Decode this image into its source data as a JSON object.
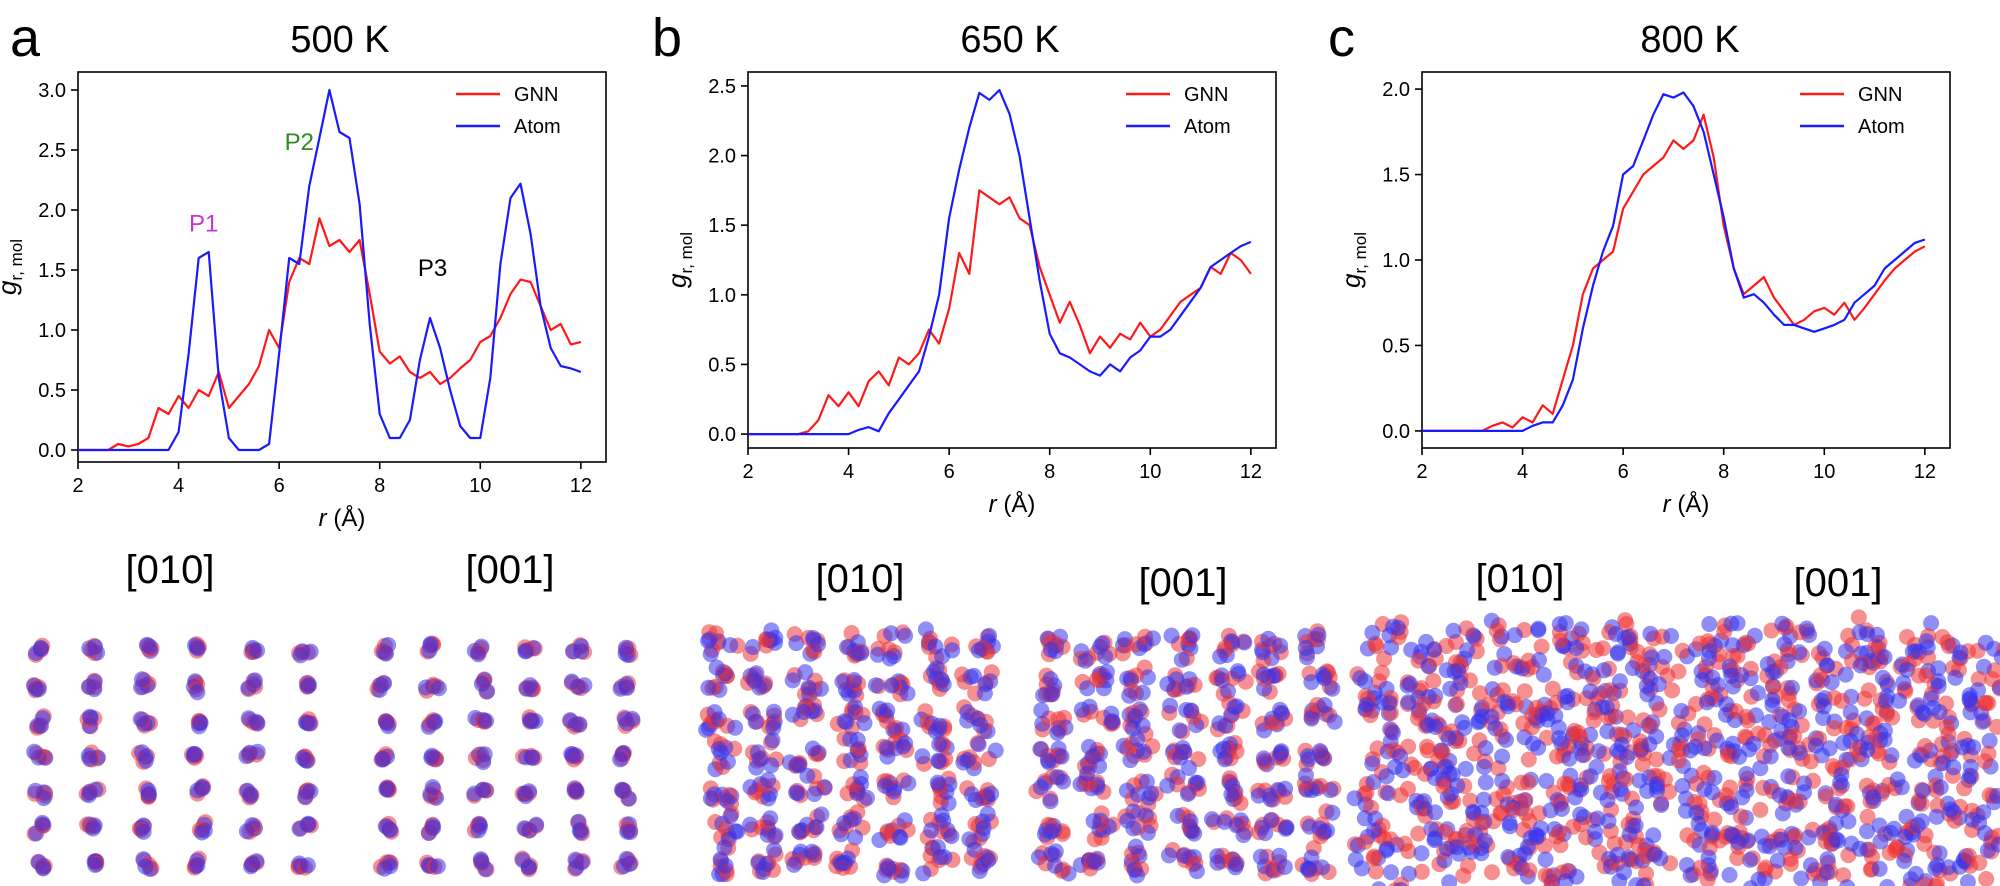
{
  "figure": {
    "colors": {
      "gnn": "#ff1a1a",
      "atom": "#1a1aff",
      "axis": "#000000"
    },
    "panels": [
      {
        "letter": "a",
        "title": "500 K",
        "view_labels": [
          "[010]",
          "[001]"
        ]
      },
      {
        "letter": "b",
        "title": "650 K",
        "view_labels": [
          "[010]",
          "[001]"
        ]
      },
      {
        "letter": "c",
        "title": "800 K",
        "view_labels": [
          "[010]",
          "[001]"
        ]
      }
    ]
  },
  "chart_data": [
    {
      "type": "line",
      "title": "500 K",
      "xlabel": "r (Å)",
      "ylabel": "g r, mol",
      "xlim": [
        2,
        12.5
      ],
      "ylim": [
        -0.1,
        3.15
      ],
      "xticks": [
        2,
        4,
        6,
        8,
        10,
        12
      ],
      "yticks": [
        0.0,
        0.5,
        1.0,
        1.5,
        2.0,
        2.5,
        3.0
      ],
      "legend": "top-right",
      "grid": false,
      "annotations": [
        {
          "text": "P1",
          "x": 4.5,
          "y": 1.82,
          "color": "#cc33cc"
        },
        {
          "text": "P2",
          "x": 6.4,
          "y": 2.5,
          "color": "#2e8b22"
        },
        {
          "text": "P3",
          "x": 9.05,
          "y": 1.45,
          "color": "#000000"
        }
      ],
      "series": [
        {
          "name": "GNN",
          "color": "#ff1a1a",
          "x": [
            2.0,
            2.6,
            2.8,
            3.0,
            3.2,
            3.4,
            3.6,
            3.8,
            4.0,
            4.2,
            4.4,
            4.6,
            4.8,
            5.0,
            5.2,
            5.4,
            5.6,
            5.8,
            6.0,
            6.2,
            6.4,
            6.6,
            6.8,
            7.0,
            7.2,
            7.4,
            7.6,
            7.8,
            8.0,
            8.2,
            8.4,
            8.6,
            8.8,
            9.0,
            9.2,
            9.4,
            9.6,
            9.8,
            10.0,
            10.2,
            10.4,
            10.6,
            10.8,
            11.0,
            11.2,
            11.4,
            11.6,
            11.8,
            12.0
          ],
          "y": [
            0.0,
            0.0,
            0.05,
            0.03,
            0.05,
            0.1,
            0.35,
            0.3,
            0.45,
            0.35,
            0.5,
            0.45,
            0.65,
            0.35,
            0.45,
            0.55,
            0.7,
            1.0,
            0.85,
            1.4,
            1.6,
            1.55,
            1.93,
            1.7,
            1.75,
            1.65,
            1.75,
            1.3,
            0.82,
            0.72,
            0.78,
            0.65,
            0.6,
            0.65,
            0.55,
            0.6,
            0.68,
            0.75,
            0.9,
            0.95,
            1.1,
            1.3,
            1.42,
            1.4,
            1.2,
            1.0,
            1.05,
            0.88,
            0.9
          ]
        },
        {
          "name": "Atom",
          "color": "#1a1aff",
          "x": [
            2.0,
            3.8,
            4.0,
            4.2,
            4.4,
            4.6,
            4.8,
            5.0,
            5.2,
            5.4,
            5.6,
            5.8,
            6.0,
            6.2,
            6.4,
            6.6,
            6.8,
            7.0,
            7.2,
            7.4,
            7.6,
            7.8,
            8.0,
            8.2,
            8.4,
            8.6,
            8.8,
            9.0,
            9.2,
            9.4,
            9.6,
            9.8,
            10.0,
            10.2,
            10.4,
            10.6,
            10.8,
            11.0,
            11.2,
            11.4,
            11.6,
            11.8,
            12.0
          ],
          "y": [
            0.0,
            0.0,
            0.15,
            0.8,
            1.6,
            1.65,
            0.6,
            0.1,
            0.0,
            0.0,
            0.0,
            0.05,
            0.8,
            1.6,
            1.55,
            2.2,
            2.6,
            3.0,
            2.65,
            2.6,
            2.05,
            1.05,
            0.3,
            0.1,
            0.1,
            0.25,
            0.75,
            1.1,
            0.85,
            0.5,
            0.2,
            0.1,
            0.1,
            0.6,
            1.55,
            2.1,
            2.22,
            1.8,
            1.2,
            0.85,
            0.7,
            0.68,
            0.65
          ]
        }
      ]
    },
    {
      "type": "line",
      "title": "650 K",
      "xlabel": "r (Å)",
      "ylabel": "g r, mol",
      "xlim": [
        2,
        12.5
      ],
      "ylim": [
        -0.1,
        2.6
      ],
      "xticks": [
        2,
        4,
        6,
        8,
        10,
        12
      ],
      "yticks": [
        0.0,
        0.5,
        1.0,
        1.5,
        2.0,
        2.5
      ],
      "legend": "top-right",
      "grid": false,
      "series": [
        {
          "name": "GNN",
          "color": "#ff1a1a",
          "x": [
            2.0,
            3.0,
            3.2,
            3.4,
            3.6,
            3.8,
            4.0,
            4.2,
            4.4,
            4.6,
            4.8,
            5.0,
            5.2,
            5.4,
            5.6,
            5.8,
            6.0,
            6.2,
            6.4,
            6.6,
            6.8,
            7.0,
            7.2,
            7.4,
            7.6,
            7.8,
            8.0,
            8.2,
            8.4,
            8.6,
            8.8,
            9.0,
            9.2,
            9.4,
            9.6,
            9.8,
            10.0,
            10.2,
            10.4,
            10.6,
            10.8,
            11.0,
            11.2,
            11.4,
            11.6,
            11.8,
            12.0
          ],
          "y": [
            0.0,
            0.0,
            0.02,
            0.1,
            0.28,
            0.2,
            0.3,
            0.2,
            0.38,
            0.45,
            0.35,
            0.55,
            0.5,
            0.58,
            0.75,
            0.65,
            0.9,
            1.3,
            1.15,
            1.75,
            1.7,
            1.65,
            1.7,
            1.55,
            1.5,
            1.2,
            1.0,
            0.8,
            0.95,
            0.78,
            0.58,
            0.7,
            0.62,
            0.72,
            0.68,
            0.8,
            0.7,
            0.75,
            0.85,
            0.95,
            1.0,
            1.05,
            1.2,
            1.15,
            1.3,
            1.25,
            1.15
          ]
        },
        {
          "name": "Atom",
          "color": "#1a1aff",
          "x": [
            2.0,
            4.0,
            4.2,
            4.4,
            4.6,
            4.8,
            5.0,
            5.2,
            5.4,
            5.6,
            5.8,
            6.0,
            6.2,
            6.4,
            6.6,
            6.8,
            7.0,
            7.2,
            7.4,
            7.6,
            7.8,
            8.0,
            8.2,
            8.4,
            8.6,
            8.8,
            9.0,
            9.2,
            9.4,
            9.6,
            9.8,
            10.0,
            10.2,
            10.4,
            10.6,
            10.8,
            11.0,
            11.2,
            11.4,
            11.6,
            11.8,
            12.0
          ],
          "y": [
            0.0,
            0.0,
            0.03,
            0.05,
            0.02,
            0.15,
            0.25,
            0.35,
            0.45,
            0.7,
            1.0,
            1.55,
            1.9,
            2.2,
            2.45,
            2.4,
            2.47,
            2.3,
            2.0,
            1.55,
            1.1,
            0.72,
            0.58,
            0.55,
            0.5,
            0.45,
            0.42,
            0.5,
            0.45,
            0.55,
            0.6,
            0.7,
            0.7,
            0.75,
            0.85,
            0.95,
            1.05,
            1.2,
            1.25,
            1.3,
            1.35,
            1.38
          ]
        }
      ]
    },
    {
      "type": "line",
      "title": "800 K",
      "xlabel": "r (Å)",
      "ylabel": "g r, mol",
      "xlim": [
        2,
        12.5
      ],
      "ylim": [
        -0.1,
        2.1
      ],
      "xticks": [
        2,
        4,
        6,
        8,
        10,
        12
      ],
      "yticks": [
        0.0,
        0.5,
        1.0,
        1.5,
        2.0
      ],
      "legend": "top-right",
      "grid": false,
      "series": [
        {
          "name": "GNN",
          "color": "#ff1a1a",
          "x": [
            2.0,
            3.2,
            3.4,
            3.6,
            3.8,
            4.0,
            4.2,
            4.4,
            4.6,
            4.8,
            5.0,
            5.2,
            5.4,
            5.6,
            5.8,
            6.0,
            6.2,
            6.4,
            6.6,
            6.8,
            7.0,
            7.2,
            7.4,
            7.6,
            7.8,
            8.0,
            8.2,
            8.4,
            8.6,
            8.8,
            9.0,
            9.2,
            9.4,
            9.6,
            9.8,
            10.0,
            10.2,
            10.4,
            10.6,
            10.8,
            11.0,
            11.2,
            11.4,
            11.6,
            11.8,
            12.0
          ],
          "y": [
            0.0,
            0.0,
            0.03,
            0.05,
            0.02,
            0.08,
            0.05,
            0.15,
            0.1,
            0.3,
            0.5,
            0.8,
            0.95,
            1.0,
            1.05,
            1.3,
            1.4,
            1.5,
            1.55,
            1.6,
            1.7,
            1.65,
            1.7,
            1.85,
            1.6,
            1.2,
            0.95,
            0.8,
            0.85,
            0.9,
            0.78,
            0.7,
            0.62,
            0.65,
            0.7,
            0.72,
            0.68,
            0.75,
            0.65,
            0.72,
            0.8,
            0.88,
            0.95,
            1.0,
            1.05,
            1.08
          ]
        },
        {
          "name": "Atom",
          "color": "#1a1aff",
          "x": [
            2.0,
            4.0,
            4.2,
            4.4,
            4.6,
            4.8,
            5.0,
            5.2,
            5.4,
            5.6,
            5.8,
            6.0,
            6.2,
            6.4,
            6.6,
            6.8,
            7.0,
            7.2,
            7.4,
            7.6,
            7.8,
            8.0,
            8.2,
            8.4,
            8.6,
            8.8,
            9.0,
            9.2,
            9.4,
            9.6,
            9.8,
            10.0,
            10.2,
            10.4,
            10.6,
            10.8,
            11.0,
            11.2,
            11.4,
            11.6,
            11.8,
            12.0
          ],
          "y": [
            0.0,
            0.0,
            0.03,
            0.05,
            0.05,
            0.15,
            0.3,
            0.6,
            0.85,
            1.05,
            1.2,
            1.5,
            1.55,
            1.7,
            1.85,
            1.97,
            1.95,
            1.98,
            1.9,
            1.75,
            1.5,
            1.25,
            0.95,
            0.78,
            0.8,
            0.75,
            0.68,
            0.62,
            0.62,
            0.6,
            0.58,
            0.6,
            0.62,
            0.65,
            0.75,
            0.8,
            0.85,
            0.95,
            1.0,
            1.05,
            1.1,
            1.12
          ]
        }
      ]
    }
  ]
}
